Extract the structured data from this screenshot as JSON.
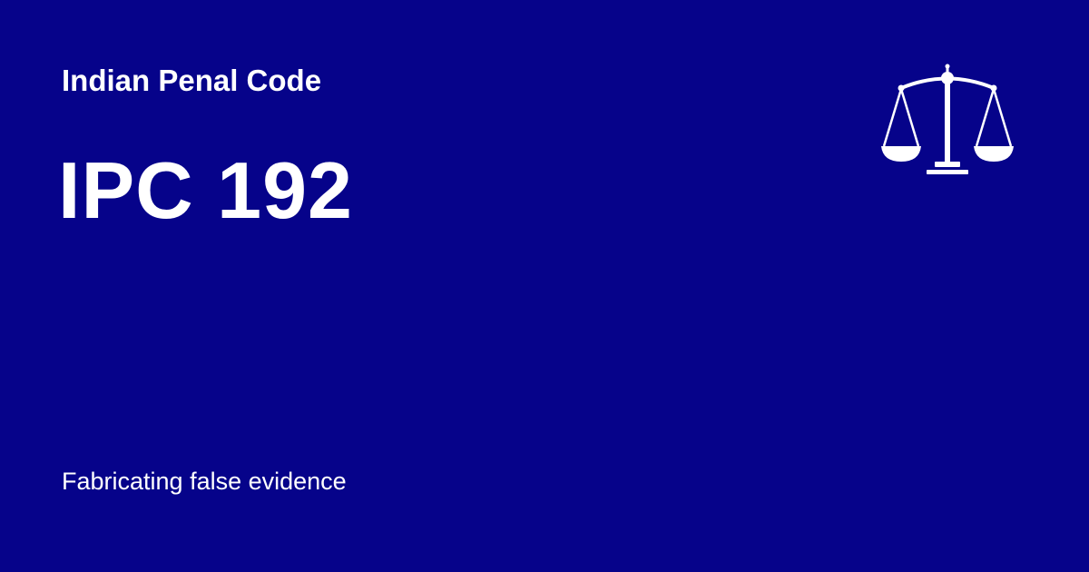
{
  "header": {
    "code_name": "Indian Penal Code"
  },
  "section": {
    "title": "IPC 192",
    "description": "Fabricating false evidence"
  },
  "icon": {
    "name": "scales-of-justice-icon"
  },
  "colors": {
    "background": "#06038a",
    "foreground": "#ffffff"
  }
}
